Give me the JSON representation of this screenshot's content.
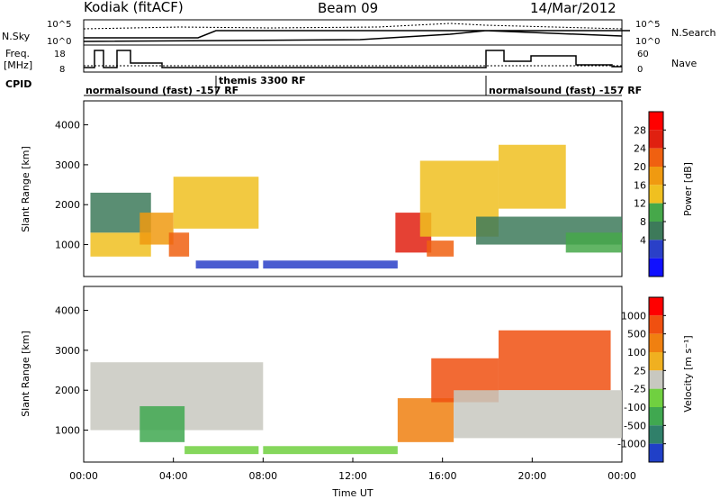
{
  "header": {
    "station": "Kodiak (fitACF)",
    "beam": "Beam 09",
    "date": "14/Mar/2012"
  },
  "summary_panels": {
    "left_labels": [
      "N.Sky",
      "Freq.",
      "[MHz]",
      "CPID"
    ],
    "right_labels": [
      "N.Search",
      "Nave"
    ],
    "nsky_ticks": [
      "10^5",
      "10^0"
    ],
    "freq_ticks": [
      "18",
      "8"
    ],
    "nave_ticks": [
      "60",
      "0"
    ],
    "nsearch_ticks": [
      "10^5",
      "10^0"
    ],
    "cpid_labels": [
      {
        "text": "normalsound (fast) -157 RF",
        "start_hour": 0
      },
      {
        "text": "themis 3300 RF",
        "start_hour": 6
      },
      {
        "text": "normalsound (fast) -157 RF",
        "start_hour": 18
      }
    ]
  },
  "chart_data": [
    {
      "type": "heatmap",
      "name": "power",
      "ylabel": "Slant Range [km]",
      "y_ticks": [
        "1000",
        "2000",
        "3000",
        "4000"
      ],
      "ylim": [
        200,
        4600
      ],
      "xlim": [
        0,
        24
      ],
      "colorbar_label": "Power [dB]",
      "colorbar_ticks": [
        "4",
        "8",
        "12",
        "16",
        "20",
        "24",
        "28"
      ],
      "colorbar_colors": [
        "#1010ff",
        "#2a40c8",
        "#3d7a5a",
        "#46a84a",
        "#f0c020",
        "#f09a10",
        "#f06010",
        "#e02010",
        "#ff0000"
      ],
      "features": [
        {
          "t0": 0.3,
          "t1": 3.0,
          "r0": 700,
          "r1": 1300,
          "level": 0.45
        },
        {
          "t0": 0.3,
          "t1": 3.0,
          "r0": 1300,
          "r1": 2300,
          "level": 0.25
        },
        {
          "t0": 2.5,
          "t1": 4.0,
          "r0": 1000,
          "r1": 1800,
          "level": 0.6
        },
        {
          "t0": 4.0,
          "t1": 7.8,
          "r0": 1400,
          "r1": 2700,
          "level": 0.55
        },
        {
          "t0": 3.8,
          "t1": 4.7,
          "r0": 700,
          "r1": 1300,
          "level": 0.8
        },
        {
          "t0": 5.0,
          "t1": 7.8,
          "r0": 400,
          "r1": 600,
          "level": 0.1
        },
        {
          "t0": 8.0,
          "t1": 14.0,
          "r0": 400,
          "r1": 600,
          "level": 0.1
        },
        {
          "t0": 13.9,
          "t1": 15.5,
          "r0": 800,
          "r1": 1800,
          "level": 0.85
        },
        {
          "t0": 15.3,
          "t1": 16.5,
          "r0": 700,
          "r1": 1100,
          "level": 0.75
        },
        {
          "t0": 15.0,
          "t1": 18.5,
          "r0": 1200,
          "r1": 3100,
          "level": 0.5
        },
        {
          "t0": 18.5,
          "t1": 21.5,
          "r0": 1900,
          "r1": 3500,
          "level": 0.45
        },
        {
          "t0": 17.5,
          "t1": 24.0,
          "r0": 1000,
          "r1": 1700,
          "level": 0.2
        },
        {
          "t0": 21.5,
          "t1": 24.0,
          "r0": 800,
          "r1": 1300,
          "level": 0.35
        }
      ]
    },
    {
      "type": "heatmap",
      "name": "velocity",
      "ylabel": "Slant Range [km]",
      "xlabel": "Time UT",
      "x_ticks": [
        "00:00",
        "04:00",
        "08:00",
        "12:00",
        "16:00",
        "20:00",
        "00:00"
      ],
      "x_tick_hours": [
        0,
        4,
        8,
        12,
        16,
        20,
        24
      ],
      "y_ticks": [
        "1000",
        "2000",
        "3000",
        "4000"
      ],
      "ylim": [
        200,
        4600
      ],
      "xlim": [
        0,
        24
      ],
      "colorbar_label": "Velocity [m s⁻¹]",
      "colorbar_ticks": [
        "1000",
        "500",
        "100",
        "25",
        "-25",
        "-100",
        "-500",
        "-1000"
      ],
      "colorbar_colors": [
        "#2040c8",
        "#30806a",
        "#40a850",
        "#70d040",
        "#c8c8c0",
        "#f0b020",
        "#f08010",
        "#f05010",
        "#ff0000"
      ],
      "features": [
        {
          "t0": 0.3,
          "t1": 8.0,
          "r0": 1000,
          "r1": 2700,
          "color": "#c8c8c0"
        },
        {
          "t0": 2.5,
          "t1": 4.5,
          "r0": 700,
          "r1": 1600,
          "color": "#40a850"
        },
        {
          "t0": 4.5,
          "t1": 7.8,
          "r0": 400,
          "r1": 600,
          "color": "#70d040"
        },
        {
          "t0": 8.0,
          "t1": 14.0,
          "r0": 400,
          "r1": 600,
          "color": "#70d040"
        },
        {
          "t0": 14.0,
          "t1": 16.5,
          "r0": 700,
          "r1": 1800,
          "color": "#f08010"
        },
        {
          "t0": 15.5,
          "t1": 18.5,
          "r0": 1700,
          "r1": 2800,
          "color": "#f05010"
        },
        {
          "t0": 18.5,
          "t1": 23.5,
          "r0": 2000,
          "r1": 3500,
          "color": "#f05010"
        },
        {
          "t0": 16.5,
          "t1": 24.0,
          "r0": 800,
          "r1": 2000,
          "color": "#c8c8c0"
        }
      ]
    }
  ]
}
